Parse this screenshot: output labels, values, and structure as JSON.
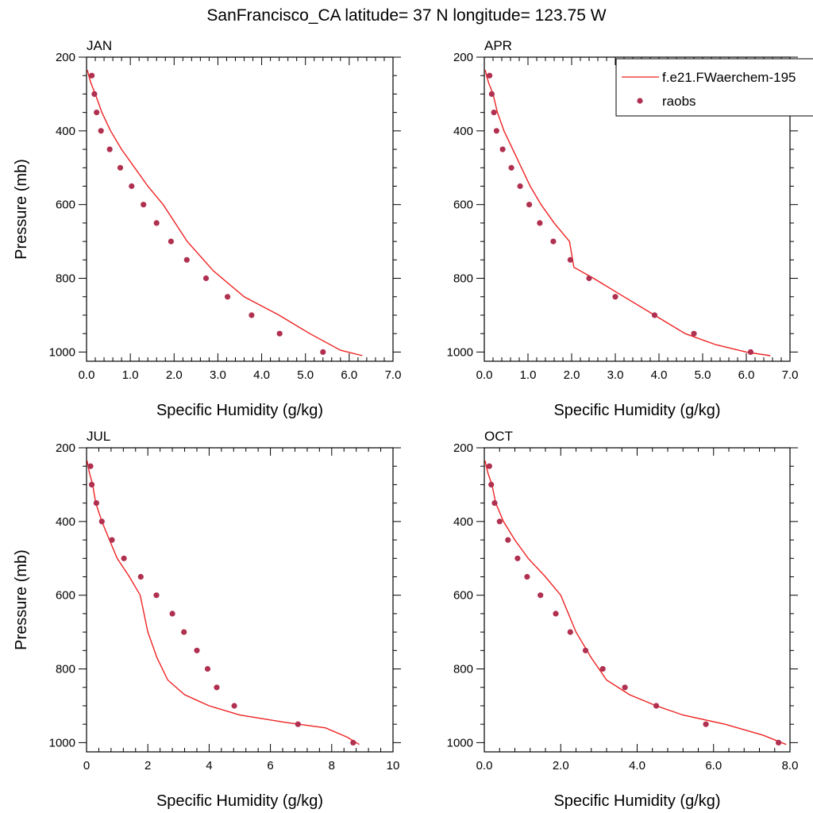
{
  "title": "SanFrancisco_CA  latitude= 37 N longitude= 123.75 W",
  "colors": {
    "model": "#ee2222",
    "obs": "#b03050"
  },
  "legend": {
    "placement": "top-right",
    "model_label": "f.e21.FWaerchem-195",
    "obs_label": "raobs"
  },
  "chart_data": [
    {
      "type": "line",
      "panel": "JAN",
      "xlabel": "Specific Humidity (g/kg)",
      "ylabel": "Pressure (mb)",
      "xlim": [
        0,
        7
      ],
      "ylim": [
        1025,
        200
      ],
      "y_reversed": true,
      "xticks": [
        "0.0",
        "1.0",
        "2.0",
        "3.0",
        "4.0",
        "5.0",
        "6.0",
        "7.0"
      ],
      "yticks": [
        "200",
        "400",
        "600",
        "800",
        "1000"
      ],
      "model": {
        "x": [
          0.02,
          0.05,
          0.1,
          0.2,
          0.35,
          0.55,
          0.8,
          1.1,
          1.4,
          1.75,
          2.3,
          2.9,
          3.6,
          4.4,
          5.1,
          5.8,
          6.3
        ],
        "p": [
          235,
          250,
          270,
          300,
          350,
          400,
          450,
          500,
          550,
          600,
          700,
          780,
          850,
          900,
          950,
          995,
          1010
        ]
      },
      "obs": {
        "x": [
          0.12,
          0.18,
          0.23,
          0.33,
          0.53,
          0.77,
          1.03,
          1.3,
          1.6,
          1.93,
          2.29,
          2.73,
          3.22,
          3.77,
          4.41,
          5.4
        ],
        "p": [
          250,
          300,
          350,
          400,
          450,
          500,
          550,
          600,
          650,
          700,
          750,
          800,
          850,
          900,
          950,
          1000
        ]
      }
    },
    {
      "type": "line",
      "panel": "APR",
      "xlabel": "Specific Humidity (g/kg)",
      "ylabel": "",
      "xlim": [
        0,
        7
      ],
      "ylim": [
        1025,
        200
      ],
      "y_reversed": true,
      "xticks": [
        "0.0",
        "1.0",
        "2.0",
        "3.0",
        "4.0",
        "5.0",
        "6.0",
        "7.0"
      ],
      "yticks": [
        "200",
        "400",
        "600",
        "800",
        "1000"
      ],
      "model": {
        "x": [
          0.02,
          0.05,
          0.1,
          0.2,
          0.3,
          0.45,
          0.65,
          0.85,
          1.05,
          1.3,
          1.6,
          1.95,
          2.05,
          2.5,
          3.2,
          3.9,
          4.6,
          5.3,
          6.0,
          6.55
        ],
        "p": [
          235,
          250,
          270,
          300,
          350,
          400,
          450,
          500,
          550,
          600,
          650,
          700,
          770,
          800,
          850,
          900,
          950,
          980,
          1000,
          1010
        ]
      },
      "obs": {
        "x": [
          0.12,
          0.17,
          0.22,
          0.28,
          0.42,
          0.62,
          0.82,
          1.03,
          1.27,
          1.58,
          1.97,
          2.4,
          3.0,
          3.9,
          4.8,
          6.1
        ],
        "p": [
          250,
          300,
          350,
          400,
          450,
          500,
          550,
          600,
          650,
          700,
          750,
          800,
          850,
          900,
          950,
          1000
        ]
      }
    },
    {
      "type": "line",
      "panel": "JUL",
      "xlabel": "Specific Humidity (g/kg)",
      "ylabel": "Pressure (mb)",
      "xlim": [
        0,
        10
      ],
      "ylim": [
        1025,
        200
      ],
      "y_reversed": true,
      "xticks": [
        "0",
        "2",
        "4",
        "6",
        "8",
        "10"
      ],
      "yticks": [
        "200",
        "400",
        "600",
        "800",
        "1000"
      ],
      "model": {
        "x": [
          0.02,
          0.05,
          0.1,
          0.2,
          0.3,
          0.5,
          0.75,
          1.0,
          1.4,
          1.75,
          2.0,
          2.3,
          2.65,
          3.2,
          4.0,
          5.0,
          6.5,
          7.8,
          8.5,
          8.9
        ],
        "p": [
          235,
          250,
          270,
          300,
          350,
          400,
          450,
          500,
          550,
          600,
          700,
          770,
          830,
          870,
          900,
          925,
          945,
          960,
          985,
          1005
        ]
      },
      "obs": {
        "x": [
          0.13,
          0.17,
          0.32,
          0.5,
          0.83,
          1.22,
          1.77,
          2.28,
          2.8,
          3.18,
          3.6,
          3.95,
          4.25,
          4.82,
          6.9,
          8.7
        ],
        "p": [
          250,
          300,
          350,
          400,
          450,
          500,
          550,
          600,
          650,
          700,
          750,
          800,
          850,
          900,
          950,
          1000
        ]
      }
    },
    {
      "type": "line",
      "panel": "OCT",
      "xlabel": "Specific Humidity (g/kg)",
      "ylabel": "",
      "xlim": [
        0,
        8
      ],
      "ylim": [
        1025,
        200
      ],
      "y_reversed": true,
      "xticks": [
        "0.0",
        "2.0",
        "4.0",
        "6.0",
        "8.0"
      ],
      "yticks": [
        "200",
        "400",
        "600",
        "800",
        "1000"
      ],
      "model": {
        "x": [
          0.02,
          0.05,
          0.1,
          0.2,
          0.3,
          0.5,
          0.8,
          1.15,
          1.6,
          2.0,
          2.4,
          2.8,
          3.2,
          3.8,
          4.5,
          5.2,
          6.3,
          7.3,
          7.9
        ],
        "p": [
          235,
          250,
          270,
          300,
          350,
          400,
          450,
          500,
          550,
          600,
          700,
          770,
          830,
          870,
          900,
          925,
          950,
          980,
          1005
        ]
      },
      "obs": {
        "x": [
          0.13,
          0.18,
          0.27,
          0.4,
          0.62,
          0.87,
          1.12,
          1.47,
          1.87,
          2.25,
          2.65,
          3.1,
          3.68,
          4.5,
          5.8,
          7.7
        ],
        "p": [
          250,
          300,
          350,
          400,
          450,
          500,
          550,
          600,
          650,
          700,
          750,
          800,
          850,
          900,
          950,
          1000
        ]
      }
    }
  ]
}
